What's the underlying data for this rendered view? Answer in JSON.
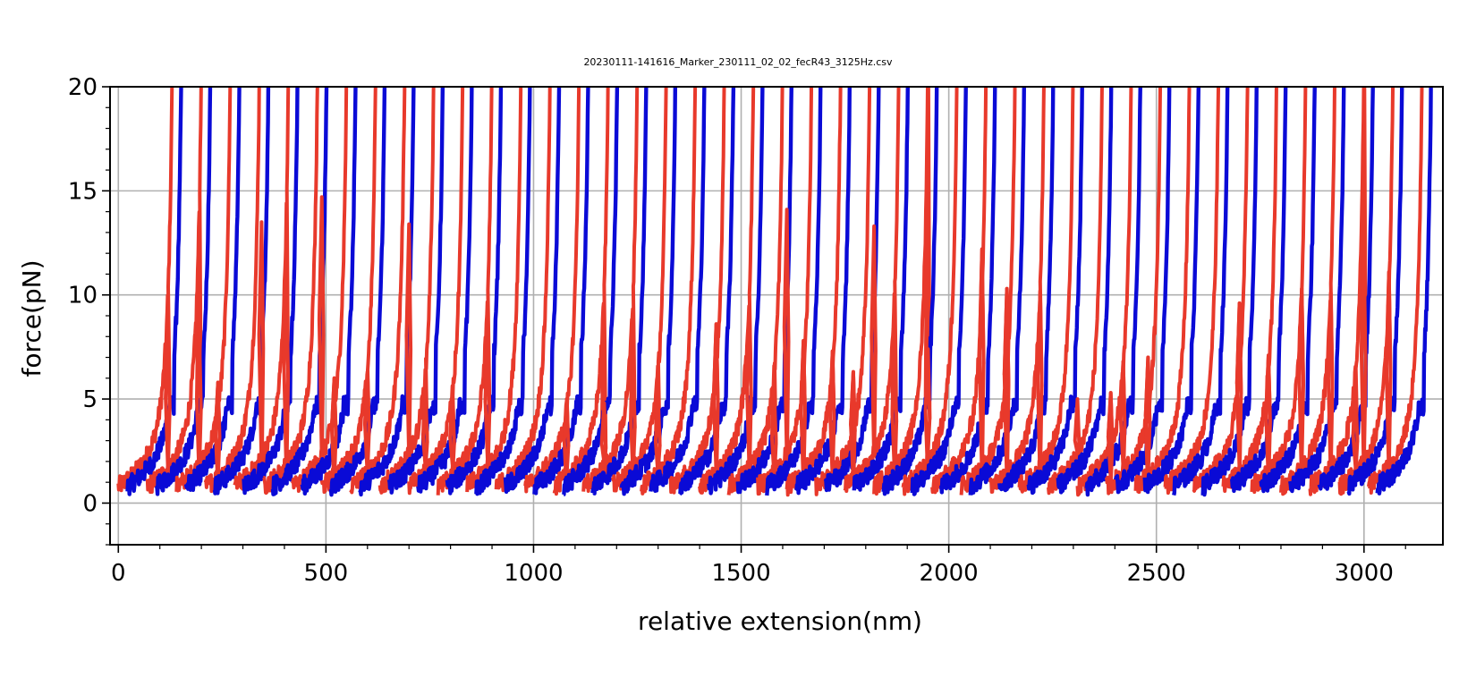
{
  "chart_data": {
    "type": "line",
    "title": "20230111-141616_Marker_230111_02_02_fecR43_3125Hz.csv",
    "xlabel": "relative extension(nm)",
    "ylabel": "force(pN)",
    "xlim": [
      -20,
      3190
    ],
    "ylim": [
      -2,
      20
    ],
    "xticks": [
      0,
      500,
      1000,
      1500,
      2000,
      2500,
      3000
    ],
    "yticks": [
      0,
      5,
      10,
      15,
      20
    ],
    "grid": true,
    "colors": {
      "pull": "#e8392b",
      "relax": "#0a0ad6",
      "grid": "#b0b0b0"
    },
    "series": [
      {
        "color": "#e8392b",
        "curve_offsets": [
          0,
          70,
          140,
          210,
          280,
          350,
          420,
          490,
          560,
          630,
          700,
          770,
          840,
          910,
          980,
          1050,
          1120,
          1190,
          1260,
          1330,
          1400,
          1470,
          1540,
          1610,
          1680,
          1750,
          1820,
          1890,
          1960,
          2030,
          2100,
          2170,
          2240,
          2310,
          2380,
          2450,
          2520,
          2590,
          2660,
          2730,
          2800,
          2870,
          2940,
          3010
        ],
        "rupture_peaks": [
          [
            120,
            8.4
          ],
          [
            195,
            8.2
          ],
          [
            240,
            5.8
          ],
          [
            345,
            13.5
          ],
          [
            405,
            11.0
          ],
          [
            490,
            14.7
          ],
          [
            520,
            6.0
          ],
          [
            600,
            6.3
          ],
          [
            700,
            13.4
          ],
          [
            740,
            5.3
          ],
          [
            805,
            5.2
          ],
          [
            890,
            8.1
          ],
          [
            1080,
            5.0
          ],
          [
            1170,
            4.8
          ],
          [
            1240,
            6.6
          ],
          [
            1300,
            5.0
          ],
          [
            1440,
            8.6
          ],
          [
            1520,
            9.3
          ],
          [
            1580,
            5.2
          ],
          [
            1610,
            14.1
          ],
          [
            1650,
            7.8
          ],
          [
            1720,
            7.3
          ],
          [
            1770,
            6.3
          ],
          [
            1820,
            13.3
          ],
          [
            1870,
            7.1
          ],
          [
            1950,
            7.4
          ],
          [
            2080,
            12.2
          ],
          [
            2140,
            10.3
          ],
          [
            2220,
            10.2
          ],
          [
            2310,
            5.0
          ],
          [
            2390,
            5.3
          ],
          [
            2420,
            6.8
          ],
          [
            2480,
            7.0
          ],
          [
            2700,
            9.6
          ],
          [
            2770,
            7.1
          ],
          [
            2850,
            10.3
          ],
          [
            2920,
            10.1
          ],
          [
            2980,
            5.4
          ],
          [
            3000,
            11.8
          ],
          [
            3060,
            11.1
          ]
        ]
      },
      {
        "color": "#0a0ad6",
        "curve_offsets": [
          0,
          70,
          140,
          210,
          280,
          350,
          420,
          490,
          560,
          630,
          700,
          770,
          840,
          910,
          980,
          1050,
          1120,
          1190,
          1260,
          1330,
          1400,
          1470,
          1540,
          1610,
          1680,
          1750,
          1820,
          1890,
          1960,
          2030,
          2100,
          2170,
          2240,
          2310,
          2380,
          2450,
          2520,
          2590,
          2660,
          2730,
          2800,
          2870,
          2940,
          3010
        ],
        "unfold_plateau": 4.7
      }
    ]
  }
}
